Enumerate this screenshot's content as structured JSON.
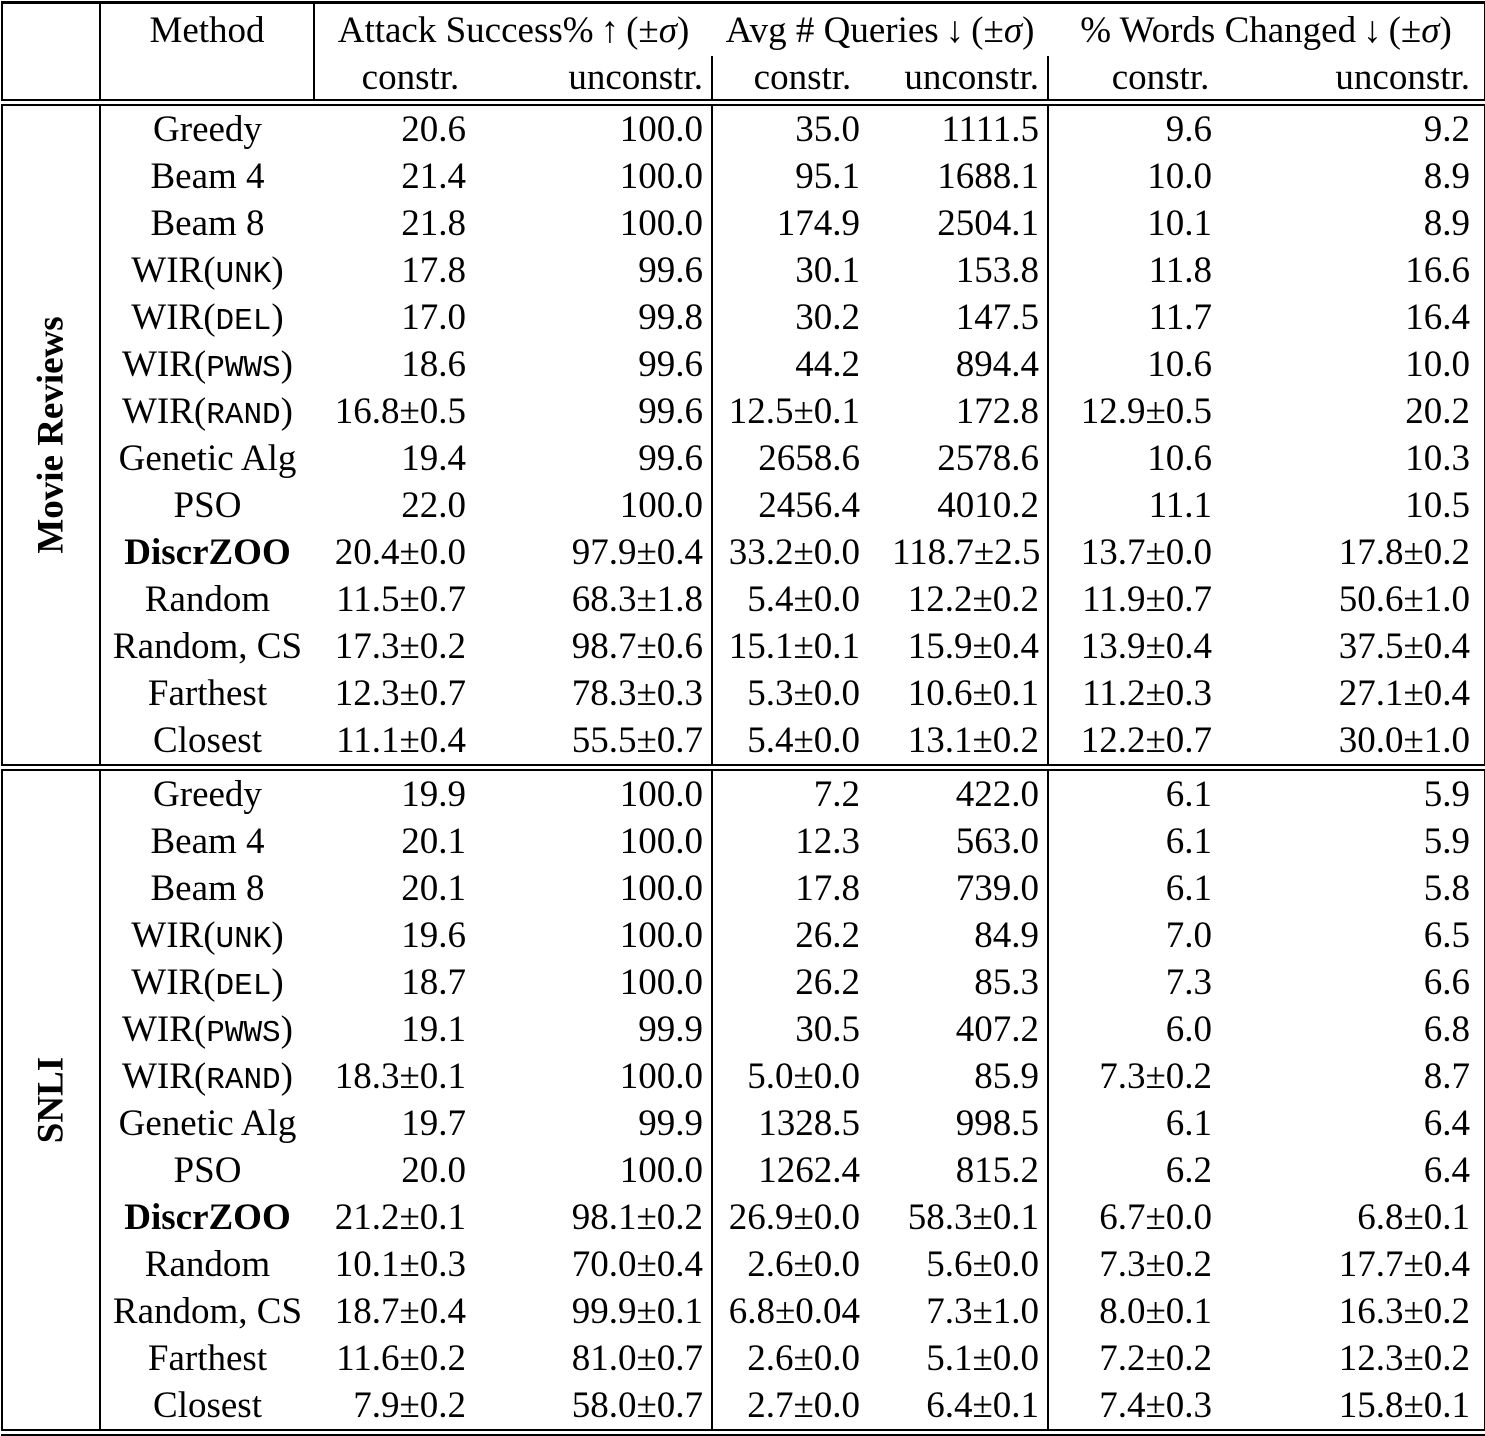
{
  "table": {
    "header": {
      "method_label": "Method",
      "groups": [
        {
          "title": "Attack Success%",
          "arrow": "↑",
          "pm": "(±",
          "sigma": "σ",
          "close": ")"
        },
        {
          "title": "Avg # Queries",
          "arrow": "↓",
          "pm": "(±",
          "sigma": "σ",
          "close": ")"
        },
        {
          "title": "% Words Changed",
          "arrow": "↓",
          "pm": "(±",
          "sigma": "σ",
          "close": ")"
        }
      ],
      "sub": {
        "constr": "constr.",
        "unconstr": "unconstr."
      }
    },
    "sections": [
      {
        "label": "Movie Reviews",
        "rows": [
          {
            "method": {
              "pre": "Greedy"
            },
            "values": [
              "20.6",
              "100.0",
              "35.0",
              "1111.5",
              "9.6",
              "9.2"
            ]
          },
          {
            "method": {
              "pre": "Beam 4"
            },
            "values": [
              "21.4",
              "100.0",
              "95.1",
              "1688.1",
              "10.0",
              "8.9"
            ]
          },
          {
            "method": {
              "pre": "Beam 8"
            },
            "values": [
              "21.8",
              "100.0",
              "174.9",
              "2504.1",
              "10.1",
              "8.9"
            ]
          },
          {
            "method": {
              "pre": "WIR(",
              "mono": "UNK",
              "post": ")"
            },
            "values": [
              "17.8",
              "99.6",
              "30.1",
              "153.8",
              "11.8",
              "16.6"
            ]
          },
          {
            "method": {
              "pre": "WIR(",
              "mono": "DEL",
              "post": ")"
            },
            "values": [
              "17.0",
              "99.8",
              "30.2",
              "147.5",
              "11.7",
              "16.4"
            ]
          },
          {
            "method": {
              "pre": "WIR(",
              "mono": "PWWS",
              "post": ")"
            },
            "values": [
              "18.6",
              "99.6",
              "44.2",
              "894.4",
              "10.6",
              "10.0"
            ]
          },
          {
            "method": {
              "pre": "WIR(",
              "mono": "RAND",
              "post": ")"
            },
            "values": [
              "16.8±0.5",
              "99.6",
              "12.5±0.1",
              "172.8",
              "12.9±0.5",
              "20.2"
            ]
          },
          {
            "method": {
              "pre": "Genetic Alg"
            },
            "values": [
              "19.4",
              "99.6",
              "2658.6",
              "2578.6",
              "10.6",
              "10.3"
            ]
          },
          {
            "method": {
              "pre": "PSO"
            },
            "values": [
              "22.0",
              "100.0",
              "2456.4",
              "4010.2",
              "11.1",
              "10.5"
            ]
          },
          {
            "method": {
              "pre": "DiscrZOO",
              "bold": true
            },
            "values": [
              "20.4±0.0",
              "97.9±0.4",
              "33.2±0.0",
              "118.7±2.5",
              "13.7±0.0",
              "17.8±0.2"
            ]
          },
          {
            "method": {
              "pre": "Random"
            },
            "values": [
              "11.5±0.7",
              "68.3±1.8",
              "5.4±0.0",
              "12.2±0.2",
              "11.9±0.7",
              "50.6±1.0"
            ]
          },
          {
            "method": {
              "pre": "Random, CS"
            },
            "values": [
              "17.3±0.2",
              "98.7±0.6",
              "15.1±0.1",
              "15.9±0.4",
              "13.9±0.4",
              "37.5±0.4"
            ]
          },
          {
            "method": {
              "pre": "Farthest"
            },
            "values": [
              "12.3±0.7",
              "78.3±0.3",
              "5.3±0.0",
              "10.6±0.1",
              "11.2±0.3",
              "27.1±0.4"
            ]
          },
          {
            "method": {
              "pre": "Closest"
            },
            "values": [
              "11.1±0.4",
              "55.5±0.7",
              "5.4±0.0",
              "13.1±0.2",
              "12.2±0.7",
              "30.0±1.0"
            ]
          }
        ]
      },
      {
        "label": "SNLI",
        "rows": [
          {
            "method": {
              "pre": "Greedy"
            },
            "values": [
              "19.9",
              "100.0",
              "7.2",
              "422.0",
              "6.1",
              "5.9"
            ]
          },
          {
            "method": {
              "pre": "Beam 4"
            },
            "values": [
              "20.1",
              "100.0",
              "12.3",
              "563.0",
              "6.1",
              "5.9"
            ]
          },
          {
            "method": {
              "pre": "Beam 8"
            },
            "values": [
              "20.1",
              "100.0",
              "17.8",
              "739.0",
              "6.1",
              "5.8"
            ]
          },
          {
            "method": {
              "pre": "WIR(",
              "mono": "UNK",
              "post": ")"
            },
            "values": [
              "19.6",
              "100.0",
              "26.2",
              "84.9",
              "7.0",
              "6.5"
            ]
          },
          {
            "method": {
              "pre": "WIR(",
              "mono": "DEL",
              "post": ")"
            },
            "values": [
              "18.7",
              "100.0",
              "26.2",
              "85.3",
              "7.3",
              "6.6"
            ]
          },
          {
            "method": {
              "pre": "WIR(",
              "mono": "PWWS",
              "post": ")"
            },
            "values": [
              "19.1",
              "99.9",
              "30.5",
              "407.2",
              "6.0",
              "6.8"
            ]
          },
          {
            "method": {
              "pre": "WIR(",
              "mono": "RAND",
              "post": ")"
            },
            "values": [
              "18.3±0.1",
              "100.0",
              "5.0±0.0",
              "85.9",
              "7.3±0.2",
              "8.7"
            ]
          },
          {
            "method": {
              "pre": "Genetic Alg"
            },
            "values": [
              "19.7",
              "99.9",
              "1328.5",
              "998.5",
              "6.1",
              "6.4"
            ]
          },
          {
            "method": {
              "pre": "PSO"
            },
            "values": [
              "20.0",
              "100.0",
              "1262.4",
              "815.2",
              "6.2",
              "6.4"
            ]
          },
          {
            "method": {
              "pre": "DiscrZOO",
              "bold": true
            },
            "values": [
              "21.2±0.1",
              "98.1±0.2",
              "26.9±0.0",
              "58.3±0.1",
              "6.7±0.0",
              "6.8±0.1"
            ]
          },
          {
            "method": {
              "pre": "Random"
            },
            "values": [
              "10.1±0.3",
              "70.0±0.4",
              "2.6±0.0",
              "5.6±0.0",
              "7.3±0.2",
              "17.7±0.4"
            ]
          },
          {
            "method": {
              "pre": "Random, CS"
            },
            "values": [
              "18.7±0.4",
              "99.9±0.1",
              "6.8±0.04",
              "7.3±1.0",
              "8.0±0.1",
              "16.3±0.2"
            ]
          },
          {
            "method": {
              "pre": "Farthest"
            },
            "values": [
              "11.6±0.2",
              "81.0±0.7",
              "2.6±0.0",
              "5.1±0.0",
              "7.2±0.2",
              "12.3±0.2"
            ]
          },
          {
            "method": {
              "pre": "Closest"
            },
            "values": [
              "7.9±0.2",
              "58.0±0.7",
              "2.7±0.0",
              "6.4±0.1",
              "7.4±0.3",
              "15.8±0.1"
            ]
          }
        ]
      }
    ]
  }
}
